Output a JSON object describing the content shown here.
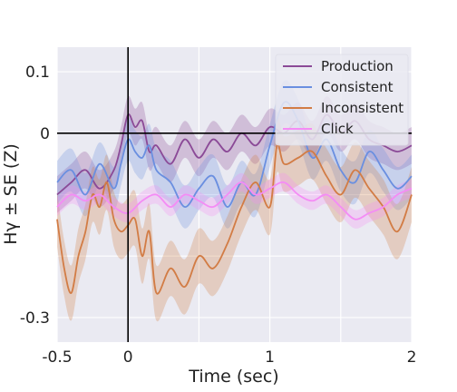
{
  "chart_data": {
    "type": "line",
    "title": "",
    "xlabel": "Time (sec)",
    "ylabel": "Hγ ± SE (Z)",
    "xlim": [
      -0.5,
      2.0
    ],
    "ylim": [
      -0.34,
      0.14
    ],
    "x_ticks": [
      {
        "value": -0.5,
        "label": "-0.5"
      },
      {
        "value": 0,
        "label": "0"
      },
      {
        "value": 1,
        "label": "1"
      },
      {
        "value": 2,
        "label": "2"
      }
    ],
    "x_minor_grid": [
      0.5,
      1.5
    ],
    "y_ticks": [
      {
        "value": 0.1,
        "label": "0.1"
      },
      {
        "value": 0,
        "label": "0"
      },
      {
        "value": -0.3,
        "label": "-0.3"
      }
    ],
    "y_minor_grid": [
      -0.1,
      -0.2
    ],
    "grid": true,
    "reference_lines": {
      "x": 0,
      "y": 0
    },
    "legend_position": "top-right",
    "band": "± SE",
    "series": [
      {
        "name": "Production",
        "color": "#8b4a97",
        "x": [
          -0.5,
          -0.4,
          -0.3,
          -0.2,
          -0.1,
          -0.05,
          0,
          0.05,
          0.1,
          0.15,
          0.2,
          0.3,
          0.4,
          0.5,
          0.6,
          0.7,
          0.8,
          0.9,
          1.0,
          1.1,
          1.2,
          1.3,
          1.4,
          1.5,
          1.6,
          1.7,
          1.8,
          1.9,
          2.0
        ],
        "y": [
          -0.1,
          -0.08,
          -0.06,
          -0.09,
          -0.06,
          -0.02,
          0.03,
          0.01,
          0.02,
          -0.03,
          -0.02,
          -0.05,
          -0.01,
          -0.04,
          -0.01,
          -0.03,
          0.0,
          -0.02,
          0.01,
          0.0,
          0.02,
          -0.01,
          0.03,
          0.0,
          0.02,
          -0.01,
          -0.02,
          -0.03,
          -0.02
        ],
        "se": [
          0.03,
          0.03,
          0.03,
          0.03,
          0.03,
          0.03,
          0.03,
          0.03,
          0.03,
          0.03,
          0.03,
          0.03,
          0.03,
          0.03,
          0.03,
          0.03,
          0.03,
          0.03,
          0.03,
          0.03,
          0.03,
          0.03,
          0.03,
          0.03,
          0.03,
          0.03,
          0.03,
          0.03,
          0.03
        ]
      },
      {
        "name": "Consistent",
        "color": "#6a8fe0",
        "x": [
          -0.5,
          -0.4,
          -0.3,
          -0.2,
          -0.1,
          -0.05,
          0,
          0.05,
          0.1,
          0.15,
          0.2,
          0.3,
          0.4,
          0.5,
          0.6,
          0.7,
          0.8,
          0.9,
          1.0,
          1.1,
          1.2,
          1.3,
          1.4,
          1.5,
          1.6,
          1.7,
          1.8,
          1.9,
          2.0
        ],
        "y": [
          -0.08,
          -0.06,
          -0.1,
          -0.05,
          -0.09,
          -0.05,
          -0.01,
          -0.03,
          -0.04,
          -0.02,
          -0.06,
          -0.08,
          -0.12,
          -0.09,
          -0.07,
          -0.12,
          -0.08,
          -0.1,
          -0.02,
          0.05,
          0.02,
          -0.04,
          -0.01,
          -0.06,
          -0.08,
          -0.03,
          -0.06,
          -0.09,
          -0.07
        ],
        "se": [
          0.035,
          0.035,
          0.035,
          0.035,
          0.035,
          0.035,
          0.035,
          0.035,
          0.035,
          0.035,
          0.035,
          0.035,
          0.035,
          0.035,
          0.035,
          0.035,
          0.035,
          0.035,
          0.035,
          0.035,
          0.035,
          0.035,
          0.035,
          0.035,
          0.035,
          0.035,
          0.035,
          0.035,
          0.035
        ]
      },
      {
        "name": "Inconsistent",
        "color": "#d27c45",
        "x": [
          -0.5,
          -0.45,
          -0.4,
          -0.35,
          -0.3,
          -0.25,
          -0.2,
          -0.15,
          -0.1,
          -0.05,
          0,
          0.05,
          0.1,
          0.15,
          0.2,
          0.3,
          0.4,
          0.5,
          0.6,
          0.7,
          0.8,
          0.9,
          1.0,
          1.05,
          1.1,
          1.2,
          1.3,
          1.4,
          1.5,
          1.6,
          1.7,
          1.8,
          1.9,
          2.0
        ],
        "y": [
          -0.14,
          -0.22,
          -0.26,
          -0.2,
          -0.16,
          -0.1,
          -0.12,
          -0.08,
          -0.14,
          -0.16,
          -0.15,
          -0.14,
          -0.2,
          -0.16,
          -0.26,
          -0.22,
          -0.25,
          -0.2,
          -0.22,
          -0.18,
          -0.12,
          -0.08,
          -0.12,
          -0.02,
          -0.05,
          -0.04,
          -0.03,
          -0.07,
          -0.1,
          -0.06,
          -0.09,
          -0.12,
          -0.16,
          -0.1
        ],
        "se": [
          0.045,
          0.045,
          0.045,
          0.045,
          0.045,
          0.045,
          0.045,
          0.045,
          0.045,
          0.045,
          0.045,
          0.045,
          0.045,
          0.045,
          0.045,
          0.045,
          0.045,
          0.045,
          0.045,
          0.045,
          0.045,
          0.045,
          0.045,
          0.045,
          0.045,
          0.045,
          0.045,
          0.045,
          0.045,
          0.045,
          0.045,
          0.045,
          0.045,
          0.045
        ]
      },
      {
        "name": "Click",
        "color": "#f48cf5",
        "x": [
          -0.5,
          -0.4,
          -0.3,
          -0.2,
          -0.1,
          0,
          0.1,
          0.2,
          0.3,
          0.4,
          0.5,
          0.6,
          0.7,
          0.8,
          0.9,
          1.0,
          1.1,
          1.2,
          1.3,
          1.4,
          1.5,
          1.6,
          1.7,
          1.8,
          1.9,
          2.0
        ],
        "y": [
          -0.12,
          -0.1,
          -0.11,
          -0.1,
          -0.12,
          -0.13,
          -0.11,
          -0.1,
          -0.12,
          -0.1,
          -0.11,
          -0.12,
          -0.1,
          -0.08,
          -0.1,
          -0.09,
          -0.08,
          -0.1,
          -0.11,
          -0.1,
          -0.12,
          -0.14,
          -0.13,
          -0.12,
          -0.1,
          -0.09
        ],
        "se": [
          0.015,
          0.015,
          0.015,
          0.015,
          0.015,
          0.015,
          0.015,
          0.015,
          0.015,
          0.015,
          0.015,
          0.015,
          0.015,
          0.015,
          0.015,
          0.015,
          0.015,
          0.015,
          0.015,
          0.015,
          0.015,
          0.015,
          0.015,
          0.015,
          0.015,
          0.015
        ]
      }
    ]
  }
}
